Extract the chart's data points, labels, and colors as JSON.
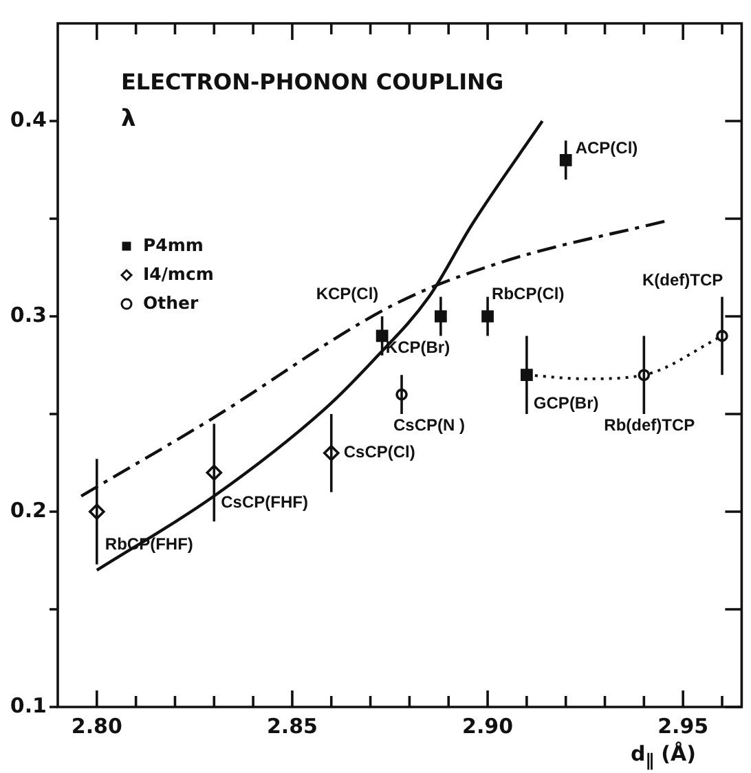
{
  "chart_data": {
    "type": "scatter",
    "title": "ELECTRON-PHONON COUPLING",
    "ylabel": "λ",
    "xlabel": "d$_{∥}$ (Å)",
    "xlim": [
      2.79,
      2.965
    ],
    "xticks": [
      {
        "value": 2.8,
        "label": "2.80"
      },
      {
        "value": 2.81,
        "label": null
      },
      {
        "value": 2.82,
        "label": null
      },
      {
        "value": 2.83,
        "label": null
      },
      {
        "value": 2.84,
        "label": null
      },
      {
        "value": 2.85,
        "label": "2.85"
      },
      {
        "value": 2.86,
        "label": null
      },
      {
        "value": 2.87,
        "label": null
      },
      {
        "value": 2.88,
        "label": null
      },
      {
        "value": 2.89,
        "label": null
      },
      {
        "value": 2.9,
        "label": "2.90"
      },
      {
        "value": 2.91,
        "label": null
      },
      {
        "value": 2.92,
        "label": null
      },
      {
        "value": 2.93,
        "label": null
      },
      {
        "value": 2.94,
        "label": null
      },
      {
        "value": 2.95,
        "label": "2.95"
      },
      {
        "value": 2.96,
        "label": null
      }
    ],
    "ylim": [
      0.1,
      0.45
    ],
    "yticks": [
      0.1,
      {
        "value": 0.15,
        "label": null
      },
      0.2,
      {
        "value": 0.25,
        "label": null
      },
      0.3,
      {
        "value": 0.35,
        "label": null
      },
      0.4
    ],
    "grid": false,
    "legend": "top left",
    "series": [
      {
        "name": "P4mm",
        "type": "scatter",
        "marker": "square",
        "color": "#111111",
        "x": [
          2.873,
          2.888,
          2.9,
          2.92,
          2.91
        ],
        "values": [
          0.29,
          0.3,
          0.3,
          0.38,
          0.27
        ],
        "errors": [
          [
            0.28,
            0.3
          ],
          [
            0.29,
            0.31
          ],
          [
            0.29,
            0.31
          ],
          [
            0.37,
            0.39
          ],
          [
            0.25,
            0.29
          ]
        ]
      },
      {
        "name": "I4/mcm",
        "type": "scatter",
        "marker": "diamond",
        "color": "#111111",
        "x": [
          2.8,
          2.83,
          2.86
        ],
        "values": [
          0.2,
          0.22,
          0.23
        ],
        "errors": [
          [
            0.173,
            0.227
          ],
          [
            0.195,
            0.245
          ],
          [
            0.21,
            0.25
          ]
        ]
      },
      {
        "name": "Other",
        "type": "scatter",
        "marker": "circle",
        "color": "#111111",
        "x": [
          2.878,
          2.94,
          2.96
        ],
        "values": [
          0.26,
          0.27,
          0.29
        ],
        "errors": [
          [
            0.25,
            0.27
          ],
          [
            0.25,
            0.29
          ],
          [
            0.27,
            0.31
          ]
        ]
      },
      {
        "type": "line",
        "line_style": "solid",
        "color": "#111111",
        "x": [
          2.8,
          2.83,
          2.858,
          2.871,
          2.885,
          2.896,
          2.914
        ],
        "values": [
          0.17,
          0.208,
          0.252,
          0.278,
          0.31,
          0.347,
          0.4
        ]
      },
      {
        "type": "line",
        "line_style": "dashed",
        "color": "#111111",
        "x": [
          2.796,
          2.829,
          2.876,
          2.904,
          2.946
        ],
        "values": [
          0.208,
          0.247,
          0.306,
          0.328,
          0.349
        ]
      },
      {
        "type": "line",
        "line_style": "dotted",
        "color": "#111111",
        "x": [
          2.91,
          2.925,
          2.94,
          2.96
        ],
        "values": [
          0.27,
          0.268,
          0.27,
          0.29
        ]
      }
    ],
    "annotations": [
      {
        "text": "RbCP(FHF)",
        "x": 2.8,
        "y": 0.2
      },
      {
        "text": "CsCP(FHF)",
        "x": 2.83,
        "y": 0.22
      },
      {
        "text": "CsCP(Cl)",
        "x": 2.86,
        "y": 0.23
      },
      {
        "text": "CsCP(N )",
        "x": 2.878,
        "y": 0.26
      },
      {
        "text": "KCP(Cl)",
        "x": 2.873,
        "y": 0.29
      },
      {
        "text": "KCP(Br)",
        "x": 2.888,
        "y": 0.3
      },
      {
        "text": "RbCP(Cl)",
        "x": 2.9,
        "y": 0.3
      },
      {
        "text": "ACP(Cl)",
        "x": 2.92,
        "y": 0.38
      },
      {
        "text": "GCP(Br)",
        "x": 2.91,
        "y": 0.27
      },
      {
        "text": "Rb(def)TCP",
        "x": 2.94,
        "y": 0.27
      },
      {
        "text": "K(def)TCP",
        "x": 2.96,
        "y": 0.29
      }
    ]
  }
}
